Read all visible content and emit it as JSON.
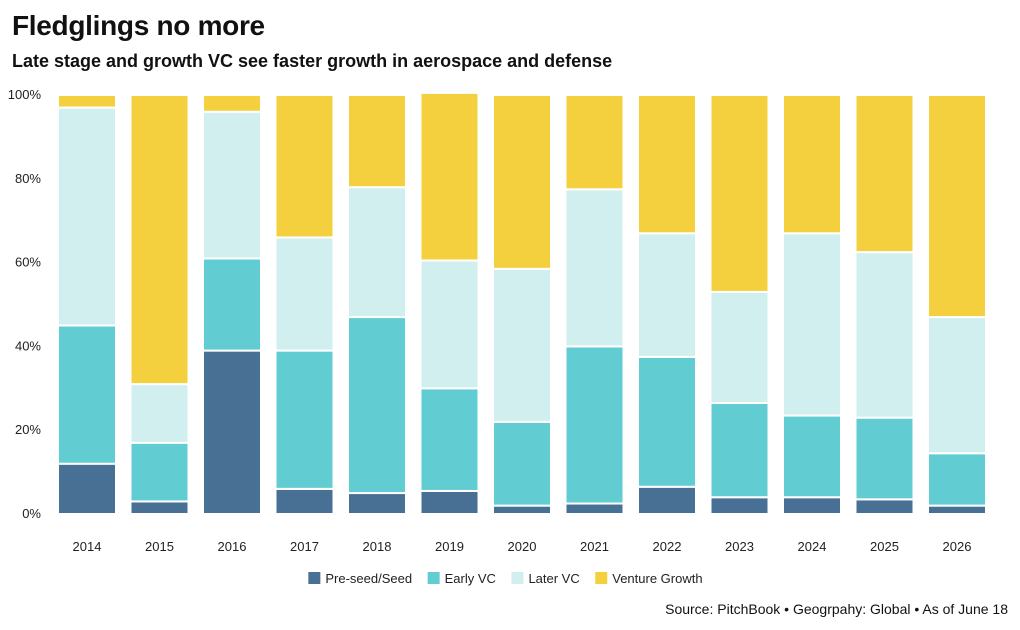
{
  "header": {
    "title": "Fledglings no more",
    "subtitle": "Late stage and growth VC see faster growth in aerospace and defense"
  },
  "footer": {
    "source": "Source: PitchBook • Geogrpahy: Global • As of June 18"
  },
  "chart_data": {
    "type": "bar",
    "stacked": true,
    "normalized": true,
    "categories": [
      "2014",
      "2015",
      "2016",
      "2017",
      "2018",
      "2019",
      "2020",
      "2021",
      "2022",
      "2023",
      "2024",
      "2025",
      "2026"
    ],
    "ylim": [
      0,
      100
    ],
    "yticks": [
      "0%",
      "20%",
      "40%",
      "60%",
      "80%",
      "100%"
    ],
    "yticks_values": [
      0,
      20,
      40,
      60,
      80,
      100
    ],
    "legend_position": "bottom",
    "grid": false,
    "series": [
      {
        "name": "Pre-seed/Seed",
        "color": "#486f94",
        "values": [
          12,
          3,
          39,
          6,
          5,
          5.5,
          2,
          2.5,
          6.5,
          4,
          4,
          3.5,
          2
        ]
      },
      {
        "name": "Early VC",
        "color": "#62ccd3",
        "values": [
          33,
          14,
          22,
          33,
          42,
          24.5,
          20,
          37.5,
          31,
          22.5,
          19.5,
          19.5,
          12.5
        ]
      },
      {
        "name": "Later VC",
        "color": "#d1efee",
        "values": [
          52,
          14,
          35,
          27,
          31,
          30.5,
          36.5,
          37.5,
          29.5,
          26.5,
          43.5,
          39.5,
          32.5
        ]
      },
      {
        "name": "Venture Growth",
        "color": "#f4d03f",
        "values": [
          3,
          69,
          4,
          34,
          22,
          40,
          41.5,
          22.5,
          33,
          47,
          33,
          37.5,
          53
        ]
      }
    ]
  }
}
